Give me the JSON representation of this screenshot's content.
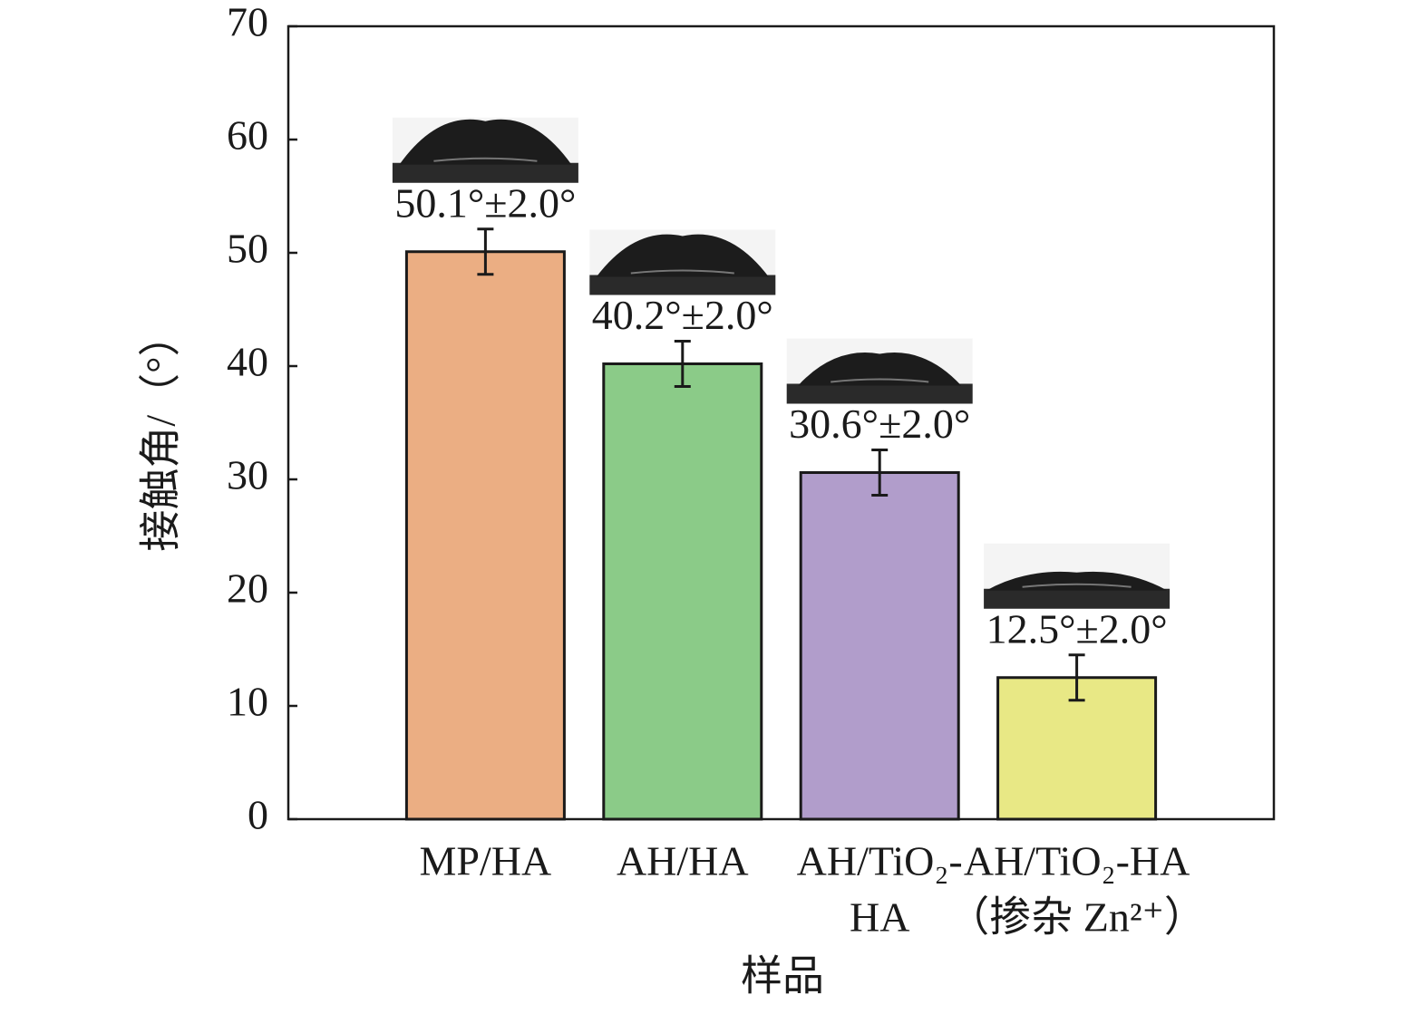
{
  "chart_data": {
    "type": "bar",
    "categories": [
      "MP/HA",
      "AH/HA",
      [
        "AH/TiO₂-",
        "HA"
      ],
      [
        "AH/TiO₂-HA",
        "（掺杂 Zn²⁺）"
      ]
    ],
    "values": [
      50.1,
      40.2,
      30.6,
      12.5
    ],
    "errors": [
      2.0,
      2.0,
      2.0,
      2.0
    ],
    "value_labels": [
      "50.1°±2.0°",
      "40.2°±2.0°",
      "30.6°±2.0°",
      "12.5°±2.0°"
    ],
    "colors": [
      "#ebae83",
      "#8bcb88",
      "#b19dcb",
      "#e8e885"
    ],
    "xlabel": "样品",
    "ylabel": "接触角/（°）",
    "ylim": [
      0,
      70
    ],
    "yticks": [
      0,
      10,
      20,
      30,
      40,
      50,
      60,
      70
    ]
  }
}
